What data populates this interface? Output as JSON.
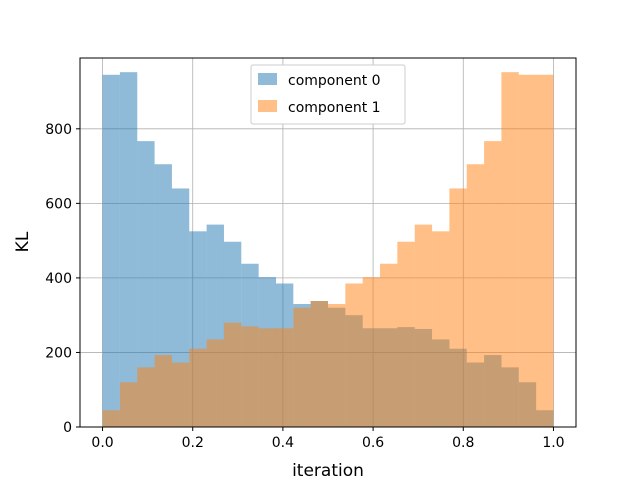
{
  "chart_data": {
    "type": "bar",
    "subtype": "histogram",
    "xlabel": "iteration",
    "ylabel": "KL",
    "xlim": [
      -0.05,
      1.05
    ],
    "ylim": [
      0,
      990
    ],
    "xticks": [
      "0.0",
      "0.2",
      "0.4",
      "0.6",
      "0.8",
      "1.0"
    ],
    "yticks": [
      "0",
      "200",
      "400",
      "600",
      "800"
    ],
    "grid": true,
    "legend": "top-center",
    "bin_width": 0.0385,
    "bin_starts": [
      0.0,
      0.0385,
      0.0769,
      0.1154,
      0.1538,
      0.1923,
      0.2308,
      0.2692,
      0.3077,
      0.3462,
      0.3846,
      0.4231,
      0.4615,
      0.5,
      0.5385,
      0.5769,
      0.6154,
      0.6538,
      0.6923,
      0.7308,
      0.7692,
      0.8077,
      0.8462,
      0.8846,
      0.9231,
      0.9615
    ],
    "series": [
      {
        "name": "component 0",
        "color": "#1f77b4",
        "alpha": 0.5,
        "values": [
          945,
          952,
          767,
          705,
          640,
          525,
          543,
          497,
          438,
          402,
          385,
          330,
          338,
          320,
          300,
          265,
          265,
          268,
          263,
          235,
          210,
          173,
          193,
          160,
          120,
          45
        ]
      },
      {
        "name": "component 1",
        "color": "#ff7f0e",
        "alpha": 0.5,
        "values": [
          45,
          120,
          160,
          193,
          173,
          210,
          235,
          280,
          270,
          265,
          265,
          320,
          338,
          330,
          385,
          402,
          438,
          497,
          543,
          525,
          640,
          705,
          767,
          952,
          945,
          945
        ]
      }
    ]
  }
}
